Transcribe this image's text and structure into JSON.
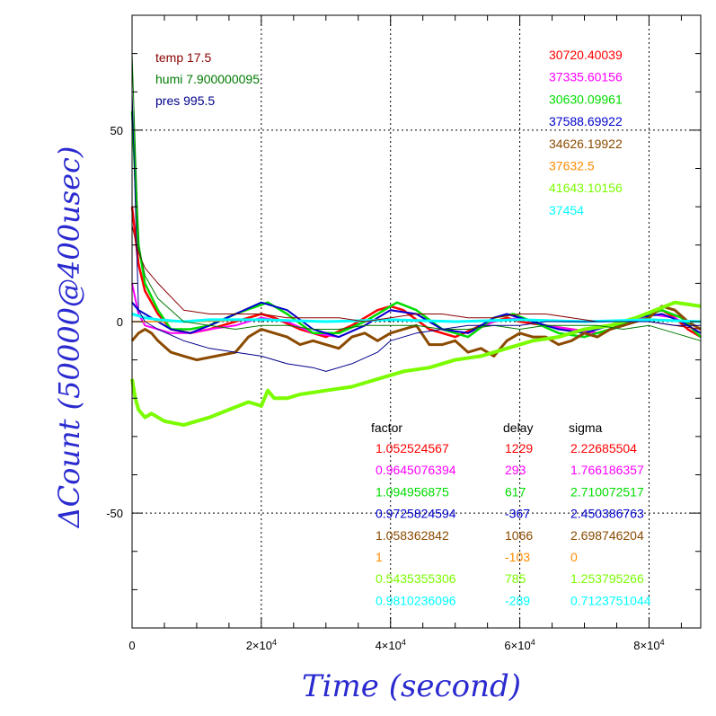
{
  "chart_data": {
    "type": "line",
    "xlabel": "Time (second)",
    "ylabel": "ΔCount (50000@400usec)",
    "xlim": [
      0,
      88000
    ],
    "ylim": [
      -80,
      80
    ],
    "grid": true,
    "x_ticks": [
      {
        "value": 0,
        "label": "0"
      },
      {
        "value": 20000,
        "base": "2×10",
        "exp": "4"
      },
      {
        "value": 40000,
        "base": "4×10",
        "exp": "4"
      },
      {
        "value": 60000,
        "base": "6×10",
        "exp": "4"
      },
      {
        "value": 80000,
        "base": "8×10",
        "exp": "4"
      }
    ],
    "y_ticks": [
      {
        "value": 50,
        "label": "50"
      },
      {
        "value": 0,
        "label": "0"
      },
      {
        "value": -50,
        "label": "-50"
      }
    ],
    "env": [
      {
        "text": "temp 17.5",
        "color": "#8b0000"
      },
      {
        "text": "humi 7.900000095",
        "color": "#007a00"
      },
      {
        "text": "pres 995.5",
        "color": "#00008b"
      }
    ],
    "means": [
      {
        "text": "30720.40039",
        "color": "#ff0000"
      },
      {
        "text": "37335.60156",
        "color": "#ff00ff"
      },
      {
        "text": "30630.09961",
        "color": "#00dd00"
      },
      {
        "text": "37588.69922",
        "color": "#0000cc"
      },
      {
        "text": "34626.19922",
        "color": "#8b4a00"
      },
      {
        "text": "37632.5",
        "color": "#ff8c00"
      },
      {
        "text": "41643.10156",
        "color": "#7cfc00"
      },
      {
        "text": "37454",
        "color": "#00ffff"
      }
    ],
    "table_headers": {
      "factor": "factor",
      "delay": "delay",
      "sigma": "sigma"
    },
    "table_rows": [
      {
        "factor": "1.052524567",
        "delay": "1229",
        "sigma": "2.22685504",
        "color": "#ff0000"
      },
      {
        "factor": "0.9645076394",
        "delay": "293",
        "sigma": "1.766186357",
        "color": "#ff00ff"
      },
      {
        "factor": "1.094956875",
        "delay": "617",
        "sigma": "2.710072517",
        "color": "#00dd00"
      },
      {
        "factor": "0.9725824594",
        "delay": "-367",
        "sigma": "2.450386763",
        "color": "#0000cc"
      },
      {
        "factor": "1.058362842",
        "delay": "1066",
        "sigma": "2.698746204",
        "color": "#8b4a00"
      },
      {
        "factor": "1",
        "delay": "-103",
        "sigma": "0",
        "color": "#ff8c00"
      },
      {
        "factor": "0.5435355306",
        "delay": "785",
        "sigma": "1.253795266",
        "color": "#7cfc00"
      },
      {
        "factor": "0.9810236096",
        "delay": "-289",
        "sigma": "0.7123751044",
        "color": "#00ffff"
      }
    ],
    "series": [
      {
        "color": "#ff0000",
        "width": 2.5,
        "x": [
          0,
          1000,
          2000,
          4000,
          6000,
          9000,
          12000,
          16000,
          20000,
          22000,
          26000,
          30000,
          34000,
          38000,
          40000,
          42000,
          46000,
          50000,
          54000,
          58000,
          60000,
          64000,
          68000,
          72000,
          76000,
          80000,
          82000,
          84000,
          86000,
          88000
        ],
        "y": [
          30,
          15,
          8,
          2,
          -2,
          -3,
          -2,
          0,
          2,
          1,
          -2,
          -4,
          -1,
          3,
          4,
          3,
          -2,
          -4,
          -1,
          1,
          0,
          -1,
          -2,
          -3,
          -1,
          2,
          3,
          1,
          -2,
          -4
        ]
      },
      {
        "color": "#ff00ff",
        "width": 2,
        "x": [
          0,
          1000,
          2000,
          4000,
          6000,
          9000,
          12000,
          16000,
          20000,
          24000,
          28000,
          32000,
          36000,
          40000,
          44000,
          48000,
          52000,
          56000,
          60000,
          64000,
          68000,
          72000,
          76000,
          80000,
          84000,
          88000
        ],
        "y": [
          10,
          2,
          -1,
          -2,
          -3,
          -3,
          -2,
          -1,
          1,
          0,
          -3,
          -4,
          -1,
          3,
          2,
          -2,
          -3,
          0,
          1,
          -1,
          -2,
          -3,
          -1,
          2,
          1,
          -3
        ]
      },
      {
        "color": "#00dd00",
        "width": 2.5,
        "x": [
          0,
          1000,
          2000,
          4000,
          6000,
          9000,
          12000,
          16000,
          21000,
          24000,
          28000,
          32000,
          36000,
          41000,
          44000,
          48000,
          52000,
          56000,
          59000,
          62000,
          66000,
          70000,
          74000,
          78000,
          82000,
          85000,
          88000
        ],
        "y": [
          55,
          20,
          10,
          3,
          -2,
          -2,
          -1,
          2,
          5,
          2,
          -3,
          -3,
          0,
          5,
          3,
          -2,
          -4,
          1,
          2,
          0,
          -3,
          -4,
          -2,
          1,
          3,
          1,
          -4
        ]
      },
      {
        "color": "#0000cc",
        "width": 2,
        "x": [
          0,
          1000,
          2000,
          4000,
          6000,
          9000,
          12000,
          16000,
          20000,
          24000,
          28000,
          32000,
          36000,
          40000,
          44000,
          48000,
          52000,
          56000,
          58000,
          62000,
          66000,
          70000,
          74000,
          78000,
          82000,
          85000,
          88000
        ],
        "y": [
          5,
          3,
          2,
          0,
          -2,
          -3,
          -1,
          2,
          5,
          3,
          -2,
          -4,
          -1,
          3,
          2,
          -2,
          -3,
          1,
          2,
          0,
          -2,
          -3,
          -1,
          1,
          2,
          0,
          -3
        ]
      },
      {
        "color": "#8b4a00",
        "width": 3,
        "x": [
          0,
          1000,
          2000,
          3000,
          4000,
          6000,
          8000,
          10000,
          13000,
          16000,
          18000,
          20000,
          22000,
          24000,
          26000,
          28000,
          30000,
          32000,
          34000,
          36000,
          38000,
          40000,
          42000,
          44000,
          46000,
          48000,
          50000,
          52000,
          54000,
          56000,
          58000,
          60000,
          62000,
          64000,
          66000,
          68000,
          70000,
          72000,
          74000,
          76000,
          78000,
          80000,
          82000,
          84000,
          86000,
          88000
        ],
        "y": [
          -5,
          -3,
          -2,
          -3,
          -5,
          -8,
          -9,
          -10,
          -9,
          -8,
          -4,
          -2,
          -3,
          -4,
          -6,
          -5,
          -6,
          -7,
          -4,
          -3,
          -5,
          -3,
          -2,
          -1,
          -6,
          -6,
          -5,
          -8,
          -7,
          -9,
          -5,
          -3,
          -4,
          -4,
          -6,
          -5,
          -3,
          -4,
          -2,
          -1,
          0,
          1,
          4,
          3,
          0,
          -2
        ]
      },
      {
        "color": "#ff8c00",
        "width": 1.5,
        "x": [
          0,
          10000,
          20000,
          30000,
          40000,
          50000,
          60000,
          70000,
          80000,
          88000
        ],
        "y": [
          0,
          0,
          0.5,
          0,
          0.5,
          0,
          0.5,
          0,
          0.5,
          0
        ]
      },
      {
        "color": "#7cfc00",
        "width": 4,
        "x": [
          0,
          500,
          1000,
          2000,
          3000,
          5000,
          8000,
          10000,
          12000,
          15000,
          18000,
          20000,
          21000,
          22000,
          24000,
          26000,
          30000,
          34000,
          38000,
          42000,
          46000,
          50000,
          54000,
          58000,
          62000,
          66000,
          70000,
          74000,
          78000,
          81000,
          84000,
          88000
        ],
        "y": [
          -15,
          -20,
          -23,
          -25,
          -24,
          -26,
          -27,
          -26,
          -25,
          -23,
          -21,
          -22,
          -18,
          -20,
          -20,
          -19,
          -18,
          -17,
          -15,
          -13,
          -12,
          -10,
          -9,
          -7,
          -5,
          -4,
          -2,
          -1,
          1,
          3,
          5,
          4
        ]
      },
      {
        "color": "#00ffff",
        "width": 3,
        "x": [
          0,
          2000,
          4000,
          8000,
          12000,
          20000,
          30000,
          40000,
          50000,
          60000,
          70000,
          80000,
          88000
        ],
        "y": [
          2,
          1,
          0.5,
          0,
          0.5,
          0.5,
          0,
          0.5,
          0,
          0.5,
          0,
          0.5,
          0
        ]
      },
      {
        "color": "#8b0000",
        "width": 1,
        "x": [
          0,
          1000,
          2000,
          4000,
          8000,
          12000,
          16000,
          20000,
          24000,
          28000,
          32000,
          36000,
          40000,
          44000,
          48000,
          52000,
          56000,
          60000,
          64000,
          68000,
          72000,
          76000,
          80000,
          84000,
          88000
        ],
        "y": [
          25,
          18,
          14,
          10,
          3,
          2,
          2,
          2,
          1,
          1,
          1,
          0,
          1,
          2,
          2,
          1,
          1,
          2,
          2,
          1,
          0,
          0,
          0,
          -1,
          -2
        ]
      },
      {
        "color": "#007a00",
        "width": 1,
        "x": [
          0,
          1000,
          2000,
          4000,
          8000,
          12000,
          16000,
          20000,
          24000,
          28000,
          32000,
          36000,
          40000,
          44000,
          48000,
          52000,
          56000,
          60000,
          64000,
          68000,
          72000,
          76000,
          80000,
          84000,
          88000
        ],
        "y": [
          70,
          20,
          12,
          6,
          0,
          -1,
          -2,
          -1,
          -1,
          -2,
          -2,
          -1,
          -1,
          -1,
          -2,
          -2,
          -1,
          -2,
          -1,
          -1,
          -1,
          -2,
          -1,
          -3,
          -5
        ]
      },
      {
        "color": "#00008b",
        "width": 1,
        "x": [
          0,
          1000,
          2000,
          4000,
          8000,
          12000,
          16000,
          20000,
          24000,
          28000,
          30000,
          34000,
          38000,
          40000,
          44000,
          48000,
          52000,
          56000,
          60000,
          64000,
          68000,
          72000,
          76000,
          80000,
          84000,
          88000
        ],
        "y": [
          60,
          3,
          0,
          -2,
          -5,
          -7,
          -8,
          -9,
          -11,
          -12,
          -13,
          -11,
          -8,
          -5,
          -3,
          -2,
          -1,
          -1,
          -1,
          0,
          0,
          0,
          0,
          0,
          -1,
          -1
        ]
      }
    ]
  }
}
